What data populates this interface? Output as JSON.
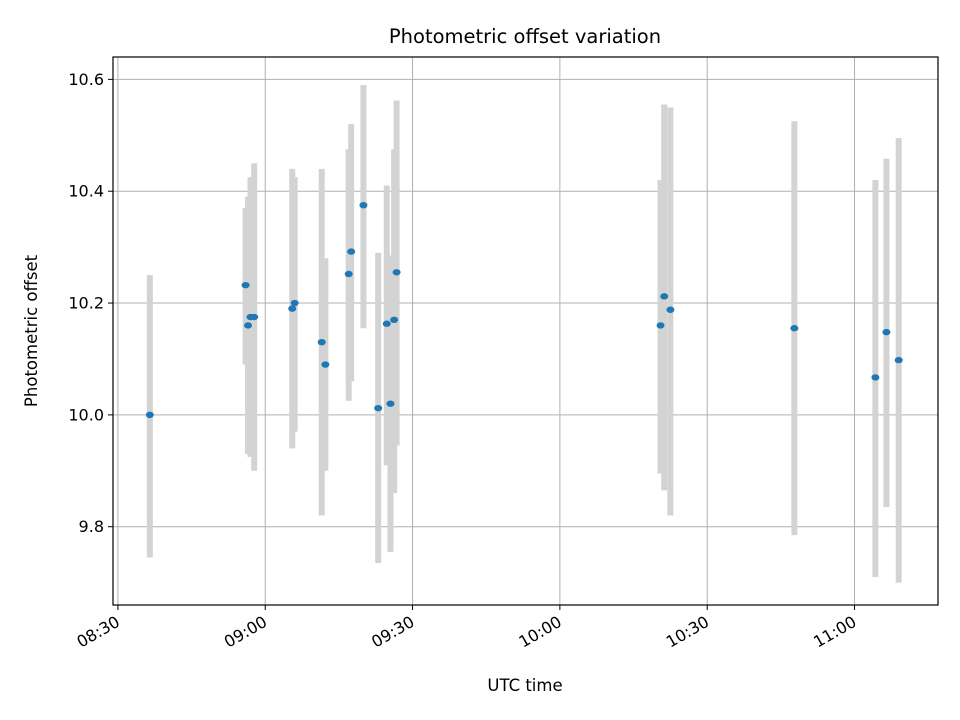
{
  "chart_data": {
    "type": "scatter",
    "title": "Photometric offset variation",
    "xlabel": "UTC time",
    "ylabel": "Photometric offset",
    "x_axis_kind": "time",
    "xlim": [
      "08:29",
      "11:17"
    ],
    "ylim": [
      9.66,
      10.64
    ],
    "x_ticks": [
      "08:30",
      "09:00",
      "09:30",
      "10:00",
      "10:30",
      "11:00"
    ],
    "y_ticks": [
      9.8,
      10.0,
      10.2,
      10.4,
      10.6
    ],
    "grid": true,
    "colors": {
      "point": "#1f77b4",
      "errorbar": "#d3d3d3",
      "grid": "#b0b0b0"
    },
    "points": [
      {
        "time": "08:36:30",
        "y": 10.0,
        "err_low": 9.745,
        "err_high": 10.25
      },
      {
        "time": "08:56:00",
        "y": 10.232,
        "err_low": 10.09,
        "err_high": 10.37
      },
      {
        "time": "08:56:30",
        "y": 10.16,
        "err_low": 9.93,
        "err_high": 10.39
      },
      {
        "time": "08:57:00",
        "y": 10.175,
        "err_low": 9.925,
        "err_high": 10.425
      },
      {
        "time": "08:57:45",
        "y": 10.175,
        "err_low": 9.9,
        "err_high": 10.45
      },
      {
        "time": "09:05:30",
        "y": 10.19,
        "err_low": 9.94,
        "err_high": 10.44
      },
      {
        "time": "09:06:00",
        "y": 10.2,
        "err_low": 9.97,
        "err_high": 10.425
      },
      {
        "time": "09:11:30",
        "y": 10.13,
        "err_low": 9.82,
        "err_high": 10.44
      },
      {
        "time": "09:12:15",
        "y": 10.09,
        "err_low": 9.9,
        "err_high": 10.28
      },
      {
        "time": "09:17:00",
        "y": 10.252,
        "err_low": 10.025,
        "err_high": 10.475
      },
      {
        "time": "09:17:30",
        "y": 10.292,
        "err_low": 10.06,
        "err_high": 10.52
      },
      {
        "time": "09:20:00",
        "y": 10.375,
        "err_low": 10.155,
        "err_high": 10.59
      },
      {
        "time": "09:23:00",
        "y": 10.012,
        "err_low": 9.735,
        "err_high": 10.29
      },
      {
        "time": "09:24:45",
        "y": 10.163,
        "err_low": 9.91,
        "err_high": 10.41
      },
      {
        "time": "09:25:30",
        "y": 10.02,
        "err_low": 9.755,
        "err_high": 10.285
      },
      {
        "time": "09:26:15",
        "y": 10.17,
        "err_low": 9.86,
        "err_high": 10.475
      },
      {
        "time": "09:26:45",
        "y": 10.255,
        "err_low": 9.945,
        "err_high": 10.562
      },
      {
        "time": "10:20:30",
        "y": 10.16,
        "err_low": 9.895,
        "err_high": 10.42
      },
      {
        "time": "10:21:15",
        "y": 10.212,
        "err_low": 9.865,
        "err_high": 10.555
      },
      {
        "time": "10:22:30",
        "y": 10.188,
        "err_low": 9.82,
        "err_high": 10.55
      },
      {
        "time": "10:47:45",
        "y": 10.155,
        "err_low": 9.785,
        "err_high": 10.525
      },
      {
        "time": "11:04:15",
        "y": 10.067,
        "err_low": 9.71,
        "err_high": 10.42
      },
      {
        "time": "11:06:30",
        "y": 10.148,
        "err_low": 9.835,
        "err_high": 10.458
      },
      {
        "time": "11:09:00",
        "y": 10.098,
        "err_low": 9.7,
        "err_high": 10.495
      }
    ]
  }
}
